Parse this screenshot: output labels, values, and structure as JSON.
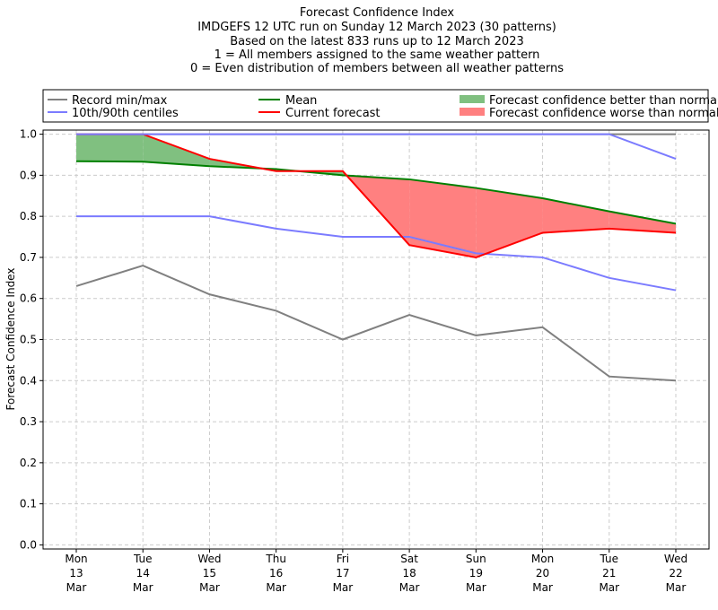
{
  "chart_data": {
    "type": "line",
    "title_lines": [
      "Forecast Confidence Index",
      "IMDGEFS 12 UTC run on Sunday 12 March 2023 (30 patterns)",
      "Based on the latest 833 runs up to 12 March 2023",
      "1 = All members assigned to the same weather pattern",
      "0 = Even distribution of members between all weather patterns"
    ],
    "ylabel": "Forecast Confidence Index",
    "ylim": [
      -0.01,
      1.01
    ],
    "yticks": [
      "0.0",
      "0.1",
      "0.2",
      "0.3",
      "0.4",
      "0.5",
      "0.6",
      "0.7",
      "0.8",
      "0.9",
      "1.0"
    ],
    "grid": true,
    "categories": [
      [
        "Mon",
        "13",
        "Mar"
      ],
      [
        "Tue",
        "14",
        "Mar"
      ],
      [
        "Wed",
        "15",
        "Mar"
      ],
      [
        "Thu",
        "16",
        "Mar"
      ],
      [
        "Fri",
        "17",
        "Mar"
      ],
      [
        "Sat",
        "18",
        "Mar"
      ],
      [
        "Sun",
        "19",
        "Mar"
      ],
      [
        "Mon",
        "20",
        "Mar"
      ],
      [
        "Tue",
        "21",
        "Mar"
      ],
      [
        "Wed",
        "22",
        "Mar"
      ]
    ],
    "series": {
      "record_max": [
        1.0,
        1.0,
        1.0,
        1.0,
        1.0,
        1.0,
        1.0,
        1.0,
        1.0,
        1.0
      ],
      "record_min": [
        0.63,
        0.68,
        0.61,
        0.57,
        0.5,
        0.56,
        0.51,
        0.53,
        0.41,
        0.4
      ],
      "centile_90": [
        1.0,
        1.0,
        1.0,
        1.0,
        1.0,
        1.0,
        1.0,
        1.0,
        1.0,
        0.94
      ],
      "centile_10": [
        0.8,
        0.8,
        0.8,
        0.77,
        0.75,
        0.75,
        0.71,
        0.7,
        0.65,
        0.62
      ],
      "mean": [
        0.934,
        0.933,
        0.922,
        0.915,
        0.9,
        0.89,
        0.869,
        0.844,
        0.812,
        0.782
      ],
      "current": [
        1.0,
        1.0,
        0.94,
        0.91,
        0.91,
        0.73,
        0.7,
        0.76,
        0.77,
        0.76
      ]
    },
    "legend": {
      "placement": "top",
      "record": "Record min/max",
      "centiles": "10th/90th centiles",
      "mean": "Mean",
      "current": "Current forecast",
      "better": "Forecast confidence better than normal",
      "worse": "Forecast confidence worse than normal"
    },
    "colors": {
      "record": "#808080",
      "centiles": "#7b7bff",
      "mean": "#008000",
      "current": "#ff0000",
      "better": "#80c080",
      "worse": "#ff8080"
    }
  }
}
